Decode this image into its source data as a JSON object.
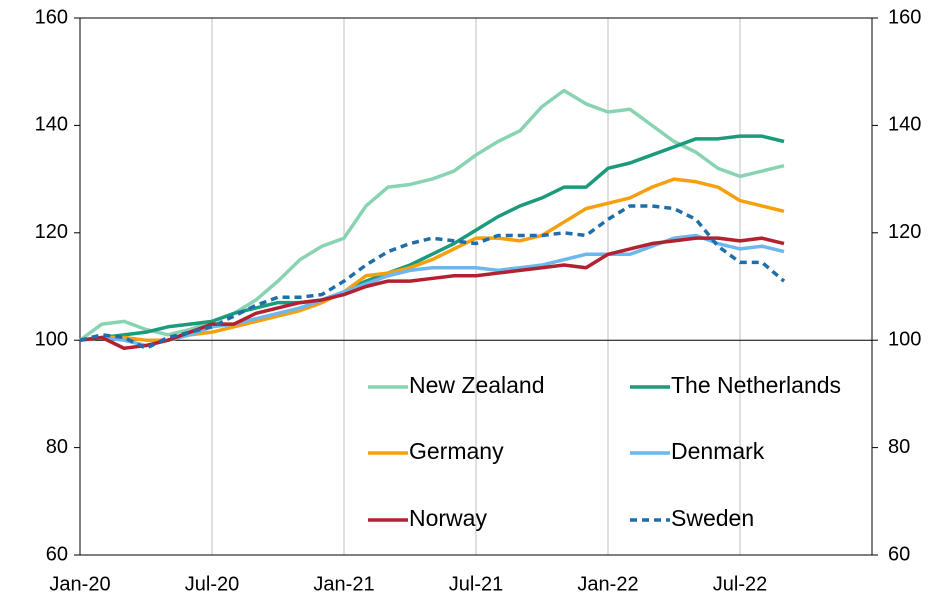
{
  "chart_data": {
    "type": "line",
    "categories": [
      "Jan-20",
      null,
      null,
      null,
      null,
      null,
      "Jul-20",
      null,
      null,
      null,
      null,
      null,
      "Jan-21",
      null,
      null,
      null,
      null,
      null,
      "Jul-21",
      null,
      null,
      null,
      null,
      null,
      "Jan-22",
      null,
      null,
      null,
      null,
      null,
      "Jul-22",
      null,
      null
    ],
    "series": [
      {
        "name": "New Zealand",
        "color": "#88d4b2",
        "dash": false,
        "values": [
          100,
          103,
          103.5,
          102,
          101,
          102,
          103.5,
          105,
          107.5,
          111,
          115,
          117.5,
          119,
          125,
          128.5,
          129,
          130,
          131.5,
          134.5,
          137,
          139,
          143.5,
          146.5,
          144,
          142.5,
          143,
          140,
          137,
          135,
          132,
          130.5,
          131.5,
          132.5
        ]
      },
      {
        "name": "The Netherlands",
        "color": "#1b9a7c",
        "dash": false,
        "values": [
          100,
          100.5,
          101,
          101.5,
          102.5,
          103,
          103.5,
          105,
          106,
          107,
          107,
          107.5,
          109,
          111,
          112.5,
          114,
          116,
          118,
          120.5,
          123,
          125,
          126.5,
          128.5,
          128.5,
          132,
          133,
          134.5,
          136,
          137.5,
          137.5,
          138,
          138,
          137
        ]
      },
      {
        "name": "Germany",
        "color": "#f5a00f",
        "dash": false,
        "values": [
          100,
          100.5,
          100.5,
          100,
          100,
          101,
          101.5,
          102.5,
          103.5,
          104.5,
          105.5,
          107,
          109,
          112,
          112.5,
          113.5,
          115,
          117,
          119,
          119,
          118.5,
          119.5,
          122,
          124.5,
          125.5,
          126.5,
          128.5,
          130,
          129.5,
          128.5,
          126,
          125,
          124
        ]
      },
      {
        "name": "Denmark",
        "color": "#6db6ee",
        "dash": false,
        "values": [
          100,
          100.5,
          100,
          99,
          100,
          101,
          102.5,
          103,
          104,
          105,
          106,
          107.5,
          109,
          110.5,
          112,
          113,
          113.5,
          113.5,
          113.5,
          113,
          113.5,
          114,
          115,
          116,
          116,
          116,
          117.5,
          119,
          119.5,
          118,
          117,
          117.5,
          116.5
        ]
      },
      {
        "name": "Norway",
        "color": "#b3202f",
        "dash": false,
        "values": [
          100,
          100.5,
          98.5,
          99,
          100,
          101.5,
          103,
          103,
          105,
          106,
          107,
          107.5,
          108.5,
          110,
          111,
          111,
          111.5,
          112,
          112,
          112.5,
          113,
          113.5,
          114,
          113.5,
          116,
          117,
          118,
          118.5,
          119,
          119,
          118.5,
          119,
          118
        ]
      },
      {
        "name": "Sweden",
        "color": "#1f6ea8",
        "dash": true,
        "values": [
          100,
          101,
          100.5,
          98.5,
          100.5,
          101.5,
          102.5,
          104.5,
          106.5,
          108,
          108,
          108.5,
          111,
          114,
          116.5,
          118,
          119,
          118.5,
          118,
          119.5,
          119.5,
          119.5,
          120,
          119.5,
          122.5,
          125,
          125,
          124.5,
          122.5,
          117.5,
          114.5,
          114.5,
          111
        ]
      }
    ],
    "ylim": [
      60,
      160
    ],
    "yticks": [
      60,
      80,
      100,
      120,
      140,
      160
    ],
    "y2lim": [
      60,
      160
    ],
    "y2ticks": [
      60,
      80,
      100,
      120,
      140,
      160
    ],
    "xaxis_crosses": 100,
    "grid": "vertical",
    "legend": "lower right"
  }
}
